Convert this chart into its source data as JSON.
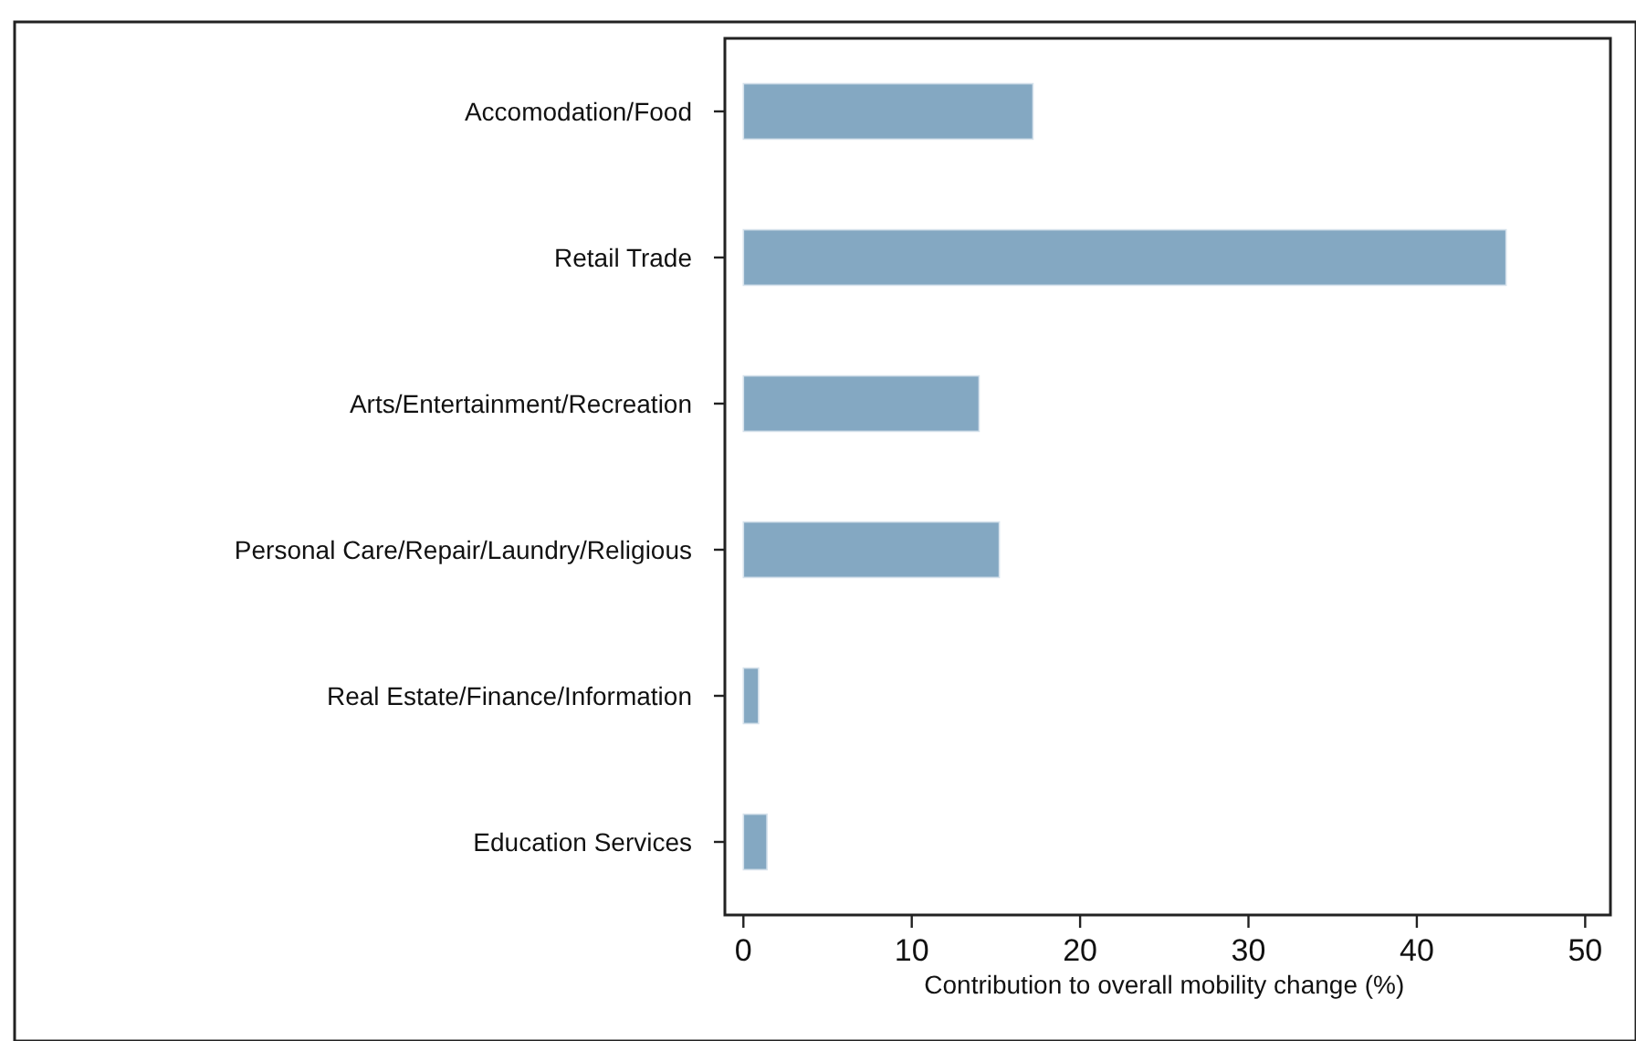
{
  "chart_data": {
    "type": "bar",
    "orientation": "horizontal",
    "xlabel": "Contribution to overall mobility change (%)",
    "categories": [
      "Accomodation/Food",
      "Retail Trade",
      "Arts/Entertainment/Recreation",
      "Personal Care/Repair/Laundry/Religious",
      "Real Estate/Finance/Information",
      "Education Services"
    ],
    "values": [
      17.2,
      45.3,
      14.0,
      15.2,
      0.9,
      1.4
    ],
    "color": "#84a8c2",
    "xlim": [
      -1.1,
      51.5
    ],
    "xticks": [
      0,
      10,
      20,
      30,
      40,
      50
    ],
    "grid": false
  }
}
